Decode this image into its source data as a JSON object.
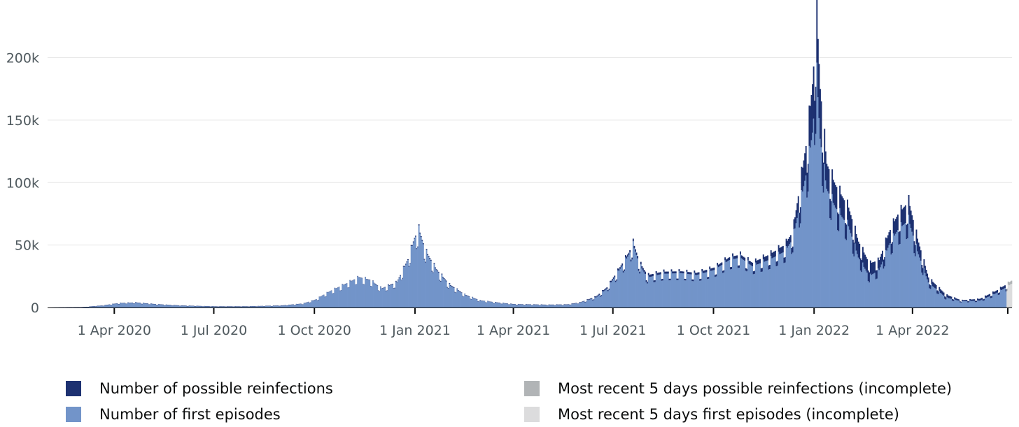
{
  "chart_data": {
    "type": "bar",
    "stacked": true,
    "x_axis": {
      "type": "date",
      "start": "2020-01-31",
      "end": "2022-06-30",
      "tick_labels": [
        {
          "date": "2020-04-01",
          "label": "1 Apr 2020"
        },
        {
          "date": "2020-07-01",
          "label": "1 Jul 2020"
        },
        {
          "date": "2020-10-01",
          "label": "1 Oct 2020"
        },
        {
          "date": "2021-01-01",
          "label": "1 Jan 2021"
        },
        {
          "date": "2021-04-01",
          "label": "1 Apr 2021"
        },
        {
          "date": "2021-07-01",
          "label": "1 Jul 2021"
        },
        {
          "date": "2021-10-01",
          "label": "1 Oct 2021"
        },
        {
          "date": "2022-01-01",
          "label": "1 Jan 2022"
        },
        {
          "date": "2022-04-01",
          "label": "1 Apr 2022"
        }
      ]
    },
    "y_axis": {
      "ylim": [
        0,
        235000
      ],
      "ticks": [
        {
          "value": 0,
          "label": "0"
        },
        {
          "value": 50000,
          "label": "50k"
        },
        {
          "value": 100000,
          "label": "100k"
        },
        {
          "value": 150000,
          "label": "150k"
        },
        {
          "value": 200000,
          "label": "200k"
        }
      ],
      "grid": true
    },
    "series": [
      {
        "name": "Number of first episodes",
        "color": "#7294c9",
        "points": [
          [
            "2020-01-31",
            0
          ],
          [
            "2020-03-01",
            200
          ],
          [
            "2020-03-20",
            1500
          ],
          [
            "2020-04-05",
            3500
          ],
          [
            "2020-04-20",
            4000
          ],
          [
            "2020-05-10",
            2500
          ],
          [
            "2020-06-01",
            1500
          ],
          [
            "2020-07-01",
            800
          ],
          [
            "2020-08-01",
            800
          ],
          [
            "2020-09-01",
            1500
          ],
          [
            "2020-09-20",
            3000
          ],
          [
            "2020-10-01",
            6000
          ],
          [
            "2020-10-15",
            13000
          ],
          [
            "2020-11-01",
            20000
          ],
          [
            "2020-11-10",
            24000
          ],
          [
            "2020-11-20",
            22000
          ],
          [
            "2020-12-01",
            15000
          ],
          [
            "2020-12-15",
            20000
          ],
          [
            "2020-12-25",
            38000
          ],
          [
            "2020-12-31",
            55000
          ],
          [
            "2021-01-04",
            62000
          ],
          [
            "2021-01-10",
            45000
          ],
          [
            "2021-01-20",
            30000
          ],
          [
            "2021-02-01",
            18000
          ],
          [
            "2021-02-15",
            10000
          ],
          [
            "2021-03-01",
            5500
          ],
          [
            "2021-03-15",
            4000
          ],
          [
            "2021-04-01",
            2500
          ],
          [
            "2021-05-01",
            2000
          ],
          [
            "2021-05-20",
            2200
          ],
          [
            "2021-06-01",
            4000
          ],
          [
            "2021-06-15",
            8000
          ],
          [
            "2021-06-25",
            15000
          ],
          [
            "2021-07-05",
            28000
          ],
          [
            "2021-07-15",
            42000
          ],
          [
            "2021-07-19",
            50000
          ],
          [
            "2021-07-25",
            34000
          ],
          [
            "2021-08-01",
            24000
          ],
          [
            "2021-08-15",
            27000
          ],
          [
            "2021-09-01",
            27500
          ],
          [
            "2021-09-15",
            26000
          ],
          [
            "2021-10-01",
            30000
          ],
          [
            "2021-10-15",
            38000
          ],
          [
            "2021-10-25",
            40000
          ],
          [
            "2021-11-05",
            33000
          ],
          [
            "2021-11-20",
            38000
          ],
          [
            "2021-12-05",
            45000
          ],
          [
            "2021-12-12",
            55000
          ],
          [
            "2021-12-18",
            80000
          ],
          [
            "2021-12-25",
            110000
          ],
          [
            "2021-12-30",
            140000
          ],
          [
            "2022-01-03",
            185000
          ],
          [
            "2022-01-06",
            135000
          ],
          [
            "2022-01-12",
            95000
          ],
          [
            "2022-01-20",
            80000
          ],
          [
            "2022-02-01",
            65000
          ],
          [
            "2022-02-10",
            40000
          ],
          [
            "2022-02-20",
            25000
          ],
          [
            "2022-03-01",
            30000
          ],
          [
            "2022-03-10",
            50000
          ],
          [
            "2022-03-18",
            62000
          ],
          [
            "2022-03-28",
            70000
          ],
          [
            "2022-04-05",
            45000
          ],
          [
            "2022-04-15",
            20000
          ],
          [
            "2022-05-01",
            8000
          ],
          [
            "2022-05-15",
            5000
          ],
          [
            "2022-06-01",
            5500
          ],
          [
            "2022-06-15",
            11000
          ],
          [
            "2022-06-25",
            16000
          ],
          [
            "2022-06-30",
            19000
          ]
        ]
      },
      {
        "name": "Number of possible reinfections",
        "color": "#1d3171",
        "points": [
          [
            "2020-01-31",
            0
          ],
          [
            "2020-10-01",
            200
          ],
          [
            "2020-12-01",
            300
          ],
          [
            "2021-01-04",
            800
          ],
          [
            "2021-03-01",
            200
          ],
          [
            "2021-06-01",
            300
          ],
          [
            "2021-07-19",
            2000
          ],
          [
            "2021-09-01",
            1500
          ],
          [
            "2021-11-01",
            2500
          ],
          [
            "2021-12-12",
            6000
          ],
          [
            "2021-12-25",
            25000
          ],
          [
            "2022-01-03",
            50000
          ],
          [
            "2022-01-12",
            20000
          ],
          [
            "2022-02-01",
            15000
          ],
          [
            "2022-03-01",
            8000
          ],
          [
            "2022-03-28",
            15000
          ],
          [
            "2022-04-15",
            4000
          ],
          [
            "2022-05-15",
            800
          ],
          [
            "2022-06-30",
            2500
          ]
        ]
      },
      {
        "name": "Most recent 5 days possible reinfections (incomplete)",
        "color": "#b1b4b6"
      },
      {
        "name": "Most recent 5 days first episodes (incomplete)",
        "color": "#dcdcdd"
      }
    ],
    "incomplete_from": "2022-06-26"
  },
  "legend": {
    "items": [
      {
        "label": "Number of possible reinfections",
        "color": "#1d3171"
      },
      {
        "label": "Number of first episodes",
        "color": "#7294c9"
      },
      {
        "label": "Most recent 5 days possible reinfections (incomplete)",
        "color": "#b1b4b6"
      },
      {
        "label": "Most recent 5 days first episodes (incomplete)",
        "color": "#dcdcdd"
      }
    ]
  }
}
